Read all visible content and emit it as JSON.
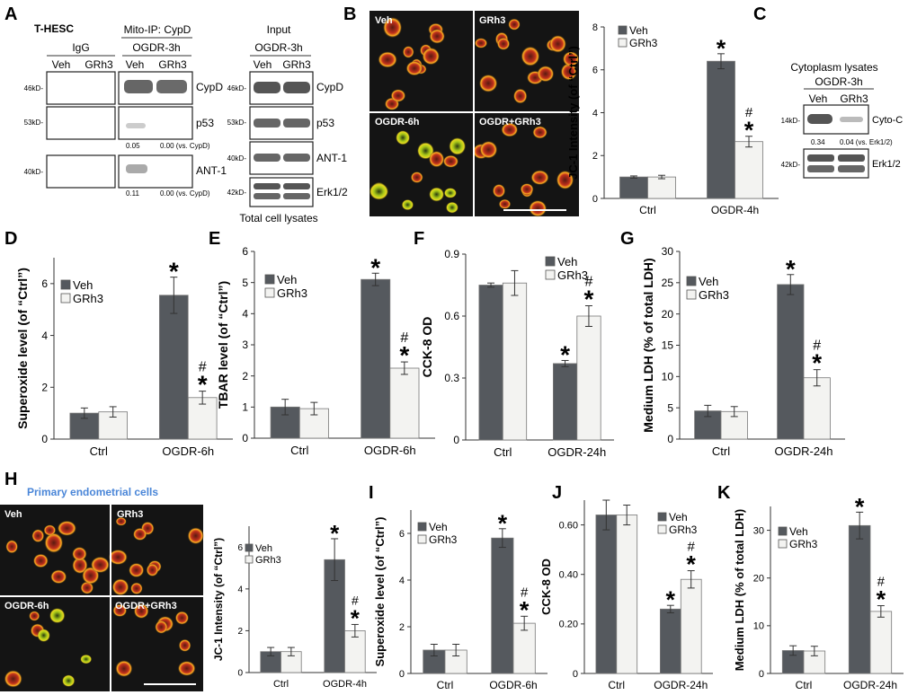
{
  "panels": {
    "A": {
      "letter": "A",
      "cell_line": "T-HESC",
      "ip_title": "Mito-IP: CypD",
      "igg_title": "IgG",
      "condition": "OGDR-3h",
      "lanes": [
        "Veh",
        "GRh3"
      ],
      "input_title": "Input",
      "input_condition": "OGDR-3h",
      "total_label": "Total cell lysates",
      "ip_rows": [
        {
          "mw": "46kD-",
          "protein": "CypD"
        },
        {
          "mw": "53kD-",
          "protein": "p53",
          "values": [
            "0.05",
            "0.00 (vs. CypD)"
          ]
        },
        {
          "mw": "40kD-",
          "protein": "ANT-1",
          "values": [
            "0.11",
            "0.00 (vs. CypD)"
          ]
        }
      ],
      "input_rows": [
        {
          "mw": "46kD-",
          "protein": "CypD"
        },
        {
          "mw": "53kD-",
          "protein": "p53"
        },
        {
          "mw": "40kD-",
          "protein": "ANT-1"
        },
        {
          "mw": "42kD-",
          "protein": "Erk1/2"
        }
      ]
    },
    "B": {
      "letter": "B",
      "images": [
        "Veh",
        "GRh3",
        "OGDR-6h",
        "OGDR+GRh3"
      ]
    },
    "C": {
      "letter": "C",
      "title": "Cytoplasm lysates",
      "condition": "OGDR-3h",
      "lanes": [
        "Veh",
        "GRh3"
      ],
      "rows": [
        {
          "mw": "14kD-",
          "protein": "Cyto-C",
          "values": [
            "0.34",
            "0.04 (vs. Erk1/2)"
          ]
        },
        {
          "mw": "42kD-",
          "protein": "Erk1/2"
        }
      ]
    },
    "H": {
      "letter": "H",
      "title": "Primary endometrial cells",
      "images": [
        "Veh",
        "GRh3",
        "OGDR-6h",
        "OGDR+GRh3"
      ]
    }
  },
  "colors": {
    "dark_bar": "#55595e",
    "light_bar": "#f3f3f1",
    "h_title": "#4a86d8"
  },
  "chart_data": [
    {
      "panel": "B",
      "type": "bar",
      "ylabel": "JC-1 Intensity (of “Ctrl”)",
      "categories": [
        "Ctrl",
        "OGDR-4h"
      ],
      "ylim": [
        0,
        8
      ],
      "yticks": [
        0,
        2,
        4,
        6,
        8
      ],
      "series": [
        {
          "name": "Veh",
          "values": [
            1.0,
            6.4
          ],
          "errors": [
            0.05,
            0.35
          ]
        },
        {
          "name": "GRh3",
          "values": [
            1.0,
            2.65
          ],
          "errors": [
            0.08,
            0.25
          ]
        }
      ],
      "legend": [
        "Veh",
        "GRh3"
      ],
      "legend_position": "top-left",
      "annotations": [
        [
          "",
          ""
        ],
        [
          "*",
          "#*"
        ]
      ]
    },
    {
      "panel": "D",
      "letter": "D",
      "type": "bar",
      "ylabel": "Superoxide level (of “Ctrl”)",
      "categories": [
        "Ctrl",
        "OGDR-6h"
      ],
      "ylim": [
        0,
        7
      ],
      "yticks": [
        0,
        2,
        4,
        6
      ],
      "series": [
        {
          "name": "Veh",
          "values": [
            1.0,
            5.55
          ],
          "errors": [
            0.2,
            0.7
          ]
        },
        {
          "name": "GRh3",
          "values": [
            1.05,
            1.6
          ],
          "errors": [
            0.2,
            0.25
          ]
        }
      ],
      "legend": [
        "Veh",
        "GRh3"
      ],
      "legend_position": "top-right",
      "annotations": [
        [
          "",
          ""
        ],
        [
          "*",
          "#*"
        ]
      ]
    },
    {
      "panel": "E",
      "letter": "E",
      "type": "bar",
      "ylabel": "TBAR level (of “Ctrl”)",
      "categories": [
        "Ctrl",
        "OGDR-6h"
      ],
      "ylim": [
        0,
        6
      ],
      "yticks": [
        0,
        1,
        2,
        3,
        4,
        5,
        6
      ],
      "series": [
        {
          "name": "Veh",
          "values": [
            1.0,
            5.1
          ],
          "errors": [
            0.25,
            0.2
          ]
        },
        {
          "name": "GRh3",
          "values": [
            0.95,
            2.25
          ],
          "errors": [
            0.2,
            0.2
          ]
        }
      ],
      "legend": [
        "Veh",
        "GRh3"
      ],
      "legend_position": "top-left",
      "annotations": [
        [
          "",
          ""
        ],
        [
          "*",
          "#*"
        ]
      ]
    },
    {
      "panel": "F",
      "letter": "F",
      "type": "bar",
      "ylabel": "CCK-8 OD",
      "categories": [
        "Ctrl",
        "OGDR-24h"
      ],
      "ylim": [
        0,
        0.9
      ],
      "yticks": [
        0,
        0.3,
        0.6,
        0.9
      ],
      "ytick_labels": [
        "0",
        "0.3",
        "0.6",
        "0.9"
      ],
      "series": [
        {
          "name": "Veh",
          "values": [
            0.75,
            0.37
          ],
          "errors": [
            0.01,
            0.015
          ]
        },
        {
          "name": "GRh3",
          "values": [
            0.76,
            0.6
          ],
          "errors": [
            0.06,
            0.05
          ]
        }
      ],
      "legend": [
        "Veh",
        "GRh3"
      ],
      "legend_position": "top-right",
      "annotations": [
        [
          "",
          ""
        ],
        [
          "*",
          "#*"
        ]
      ]
    },
    {
      "panel": "G",
      "letter": "G",
      "type": "bar",
      "ylabel": "Medium LDH (% of total LDH)",
      "categories": [
        "Ctrl",
        "OGDR-24h"
      ],
      "ylim": [
        0,
        30
      ],
      "yticks": [
        0,
        5,
        10,
        15,
        20,
        25,
        30
      ],
      "series": [
        {
          "name": "Veh",
          "values": [
            4.5,
            24.7
          ],
          "errors": [
            0.9,
            1.6
          ]
        },
        {
          "name": "GRh3",
          "values": [
            4.4,
            9.8
          ],
          "errors": [
            0.8,
            1.3
          ]
        }
      ],
      "legend": [
        "Veh",
        "GRh3"
      ],
      "legend_position": "top-left",
      "annotations": [
        [
          "",
          ""
        ],
        [
          "*",
          "#*"
        ]
      ]
    },
    {
      "panel": "H",
      "type": "bar",
      "ylabel": "JC-1 Intensity (of “Ctrl”)",
      "categories": [
        "Ctrl",
        "OGDR-4h"
      ],
      "ylim": [
        0,
        7
      ],
      "yticks": [
        0,
        2,
        4,
        6
      ],
      "series": [
        {
          "name": "Veh",
          "values": [
            1.0,
            5.4
          ],
          "errors": [
            0.2,
            1.0
          ]
        },
        {
          "name": "GRh3",
          "values": [
            1.0,
            2.0
          ],
          "errors": [
            0.2,
            0.3
          ]
        }
      ],
      "legend": [
        "Veh",
        "GRh3"
      ],
      "legend_position": "top-right",
      "annotations": [
        [
          "",
          ""
        ],
        [
          "*",
          "#*"
        ]
      ]
    },
    {
      "panel": "I",
      "letter": "I",
      "type": "bar",
      "ylabel": "Superoxide level (of “Ctrl”)",
      "categories": [
        "Ctrl",
        "OGDR-6h"
      ],
      "ylim": [
        0,
        7
      ],
      "yticks": [
        0,
        2,
        4,
        6
      ],
      "series": [
        {
          "name": "Veh",
          "values": [
            1.0,
            5.8
          ],
          "errors": [
            0.25,
            0.4
          ]
        },
        {
          "name": "GRh3",
          "values": [
            1.0,
            2.15
          ],
          "errors": [
            0.25,
            0.3
          ]
        }
      ],
      "legend": [
        "Veh",
        "GRh3"
      ],
      "legend_position": "top-left",
      "annotations": [
        [
          "",
          ""
        ],
        [
          "*",
          "#*"
        ]
      ]
    },
    {
      "panel": "J",
      "letter": "J",
      "type": "bar",
      "ylabel": "CCK-8 OD",
      "categories": [
        "Ctrl",
        "OGDR-24h"
      ],
      "ylim": [
        0,
        0.7
      ],
      "yticks": [
        0,
        0.2,
        0.4,
        0.6
      ],
      "ytick_labels": [
        "0",
        "0.20",
        "0.40",
        "0.60"
      ],
      "series": [
        {
          "name": "Veh",
          "values": [
            0.64,
            0.26
          ],
          "errors": [
            0.06,
            0.015
          ]
        },
        {
          "name": "GRh3",
          "values": [
            0.64,
            0.38
          ],
          "errors": [
            0.04,
            0.035
          ]
        }
      ],
      "legend": [
        "Veh",
        "GRh3"
      ],
      "legend_position": "top-right",
      "annotations": [
        [
          "",
          ""
        ],
        [
          "*",
          "#*"
        ]
      ]
    },
    {
      "panel": "K",
      "letter": "K",
      "type": "bar",
      "ylabel": "Medium LDH (% of total LDH)",
      "categories": [
        "Ctrl",
        "OGDR-24h"
      ],
      "ylim": [
        0,
        35
      ],
      "yticks": [
        0,
        10,
        20,
        30
      ],
      "series": [
        {
          "name": "Veh",
          "values": [
            4.8,
            31.0
          ],
          "errors": [
            1.0,
            2.8
          ]
        },
        {
          "name": "GRh3",
          "values": [
            4.7,
            13.0
          ],
          "errors": [
            1.0,
            1.2
          ]
        }
      ],
      "legend": [
        "Veh",
        "GRh3"
      ],
      "legend_position": "top-left",
      "annotations": [
        [
          "",
          ""
        ],
        [
          "*",
          "#*"
        ]
      ]
    }
  ]
}
